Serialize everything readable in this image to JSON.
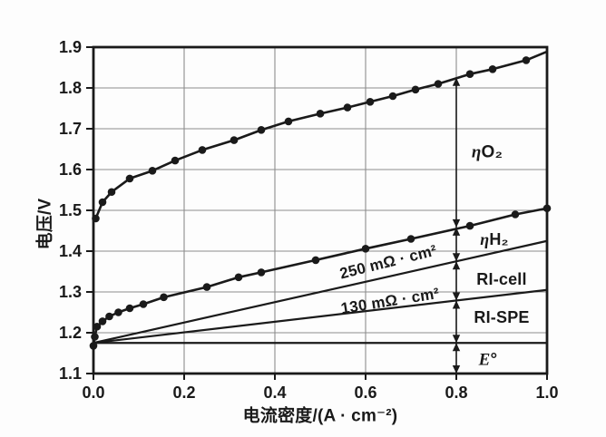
{
  "figure": {
    "background": "#fdfdfd",
    "ink": "#1a1a1a",
    "grid_color": "#8d8d8d"
  },
  "chart_data": {
    "type": "line",
    "title": "",
    "xlabel": "电流密度/(A · cm⁻²)",
    "ylabel": "电压/V",
    "xlim": [
      0.0,
      1.0
    ],
    "ylim": [
      1.1,
      1.9
    ],
    "grid": true,
    "legend": "none",
    "xticks": [
      0.0,
      0.2,
      0.4,
      0.6,
      0.8,
      1.0
    ],
    "xtick_labels": [
      "0.0",
      "0.2",
      "0.4",
      "0.6",
      "0.8",
      "1.0"
    ],
    "yticks": [
      1.1,
      1.2,
      1.3,
      1.4,
      1.5,
      1.6,
      1.7,
      1.8,
      1.9
    ],
    "ytick_labels": [
      "1.1",
      "1.2",
      "1.3",
      "1.4",
      "1.5",
      "1.6",
      "1.7",
      "1.8",
      "1.9"
    ],
    "series": [
      {
        "name": "oxygen-side-polarization-curve",
        "marker": "dot",
        "points": [
          [
            0.005,
            1.48
          ],
          [
            0.02,
            1.52
          ],
          [
            0.04,
            1.545
          ],
          [
            0.08,
            1.578
          ],
          [
            0.13,
            1.597
          ],
          [
            0.18,
            1.622
          ],
          [
            0.24,
            1.648
          ],
          [
            0.31,
            1.672
          ],
          [
            0.37,
            1.697
          ],
          [
            0.43,
            1.718
          ],
          [
            0.5,
            1.737
          ],
          [
            0.56,
            1.752
          ],
          [
            0.61,
            1.766
          ],
          [
            0.66,
            1.78
          ],
          [
            0.71,
            1.796
          ],
          [
            0.76,
            1.81
          ],
          [
            0.83,
            1.834
          ],
          [
            0.88,
            1.846
          ],
          [
            0.954,
            1.868
          ],
          [
            1.0,
            1.889
          ]
        ],
        "marker_points_end_index": 19
      },
      {
        "name": "hydrogen-side-polarization-curve",
        "marker": "dot",
        "points": [
          [
            0.0,
            1.168
          ],
          [
            0.003,
            1.19
          ],
          [
            0.008,
            1.215
          ],
          [
            0.02,
            1.228
          ],
          [
            0.035,
            1.24
          ],
          [
            0.055,
            1.25
          ],
          [
            0.08,
            1.26
          ],
          [
            0.11,
            1.27
          ],
          [
            0.155,
            1.287
          ],
          [
            0.25,
            1.312
          ],
          [
            0.32,
            1.336
          ],
          [
            0.37,
            1.348
          ],
          [
            0.49,
            1.378
          ],
          [
            0.6,
            1.406
          ],
          [
            0.7,
            1.43
          ],
          [
            0.83,
            1.462
          ],
          [
            0.93,
            1.49
          ],
          [
            1.0,
            1.505
          ]
        ],
        "marker_points_end_index": 18
      }
    ],
    "lines": [
      {
        "name": "ir-cell-resistance-line",
        "label": "250 mΩ · cm²",
        "from": [
          0.0,
          1.175
        ],
        "to": [
          1.0,
          1.425
        ]
      },
      {
        "name": "ir-spe-resistance-line",
        "label": "130 mΩ · cm²",
        "from": [
          0.0,
          1.175
        ],
        "to": [
          1.0,
          1.305
        ]
      },
      {
        "name": "reversible-voltage-line",
        "label": "E°",
        "from": [
          0.0,
          1.175
        ],
        "to": [
          1.0,
          1.175
        ]
      }
    ],
    "annotation_line": {
      "x": 0.8,
      "segments": [
        {
          "name": "e-std-segment",
          "from": 1.1,
          "to": 1.175
        },
        {
          "name": "ri-spe-segment",
          "from": 1.175,
          "to": 1.279
        },
        {
          "name": "ri-cell-segment",
          "from": 1.279,
          "to": 1.375
        },
        {
          "name": "eta-h2-segment",
          "from": 1.375,
          "to": 1.458
        },
        {
          "name": "eta-o2-segment",
          "from": 1.458,
          "to": 1.825
        }
      ]
    },
    "annotations": {
      "eta_o2": {
        "italic": "η",
        "rest": "O₂"
      },
      "eta_h2": {
        "italic": "η",
        "rest": "H₂"
      },
      "ri_cell": "RI-cell",
      "ri_spe": "RI-SPE",
      "e_std": {
        "italic": "E",
        "rest": "°"
      }
    }
  }
}
